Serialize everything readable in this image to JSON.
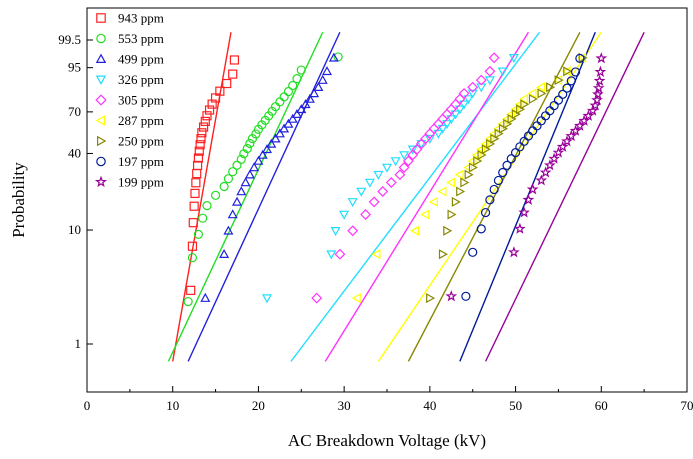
{
  "chart_data": {
    "type": "scatter",
    "title": "",
    "xlabel": "AC Breakdown Voltage (kV)",
    "ylabel": "Probability",
    "xlim": [
      0,
      70
    ],
    "x_ticks": [
      "0",
      "10",
      "20",
      "30",
      "40",
      "50",
      "60",
      "70"
    ],
    "y_scale": "weibull-probability",
    "y_ticks": [
      "1",
      "10",
      "40",
      "70",
      "95",
      "99.5"
    ],
    "grid": false,
    "legend_position": "top-left",
    "series": [
      {
        "name": "943 ppm",
        "color": "#ff2020",
        "marker": "square",
        "fit": {
          "x1": 10.0,
          "p1": 0.7,
          "x2": 16.8,
          "p2": 99.8
        },
        "x": [
          12.1,
          12.3,
          12.4,
          12.5,
          12.6,
          12.7,
          12.8,
          12.9,
          13.0,
          13.1,
          13.2,
          13.3,
          13.4,
          13.6,
          13.8,
          14.0,
          14.3,
          14.6,
          15.0,
          15.5,
          16.3,
          17.0,
          17.2
        ]
      },
      {
        "name": "553 ppm",
        "color": "#22dd22",
        "marker": "circle",
        "fit": {
          "x1": 9.5,
          "p1": 0.7,
          "x2": 27.5,
          "p2": 99.8
        },
        "x": [
          11.8,
          12.3,
          13.0,
          13.5,
          14.0,
          15.0,
          16.0,
          16.5,
          17.0,
          17.5,
          18.0,
          18.3,
          18.7,
          19.0,
          19.3,
          19.7,
          20.0,
          20.4,
          20.8,
          21.2,
          21.6,
          22.0,
          22.5,
          23.0,
          23.5,
          24.0,
          24.5,
          25.0,
          29.3
        ]
      },
      {
        "name": "499 ppm",
        "color": "#2020dd",
        "marker": "triangle-up",
        "fit": {
          "x1": 11.8,
          "p1": 0.7,
          "x2": 29.5,
          "p2": 99.8
        },
        "x": [
          13.8,
          16.0,
          16.5,
          17.0,
          17.5,
          18.0,
          18.5,
          19.0,
          19.5,
          20.0,
          20.5,
          21.0,
          21.5,
          22.0,
          22.5,
          23.0,
          23.5,
          24.0,
          24.5,
          25.0,
          25.5,
          26.0,
          26.5,
          27.0,
          27.5,
          28.0,
          28.8
        ]
      },
      {
        "name": "326 ppm",
        "color": "#22ddff",
        "marker": "triangle-down",
        "fit": {
          "x1": 23.8,
          "p1": 0.7,
          "x2": 52.8,
          "p2": 99.8
        },
        "x": [
          21.0,
          28.5,
          29.0,
          30.0,
          31.0,
          32.0,
          33.0,
          34.0,
          35.0,
          36.0,
          37.0,
          38.0,
          39.0,
          40.0,
          41.0,
          41.5,
          42.0,
          42.5,
          43.0,
          43.5,
          44.0,
          44.5,
          45.0,
          46.0,
          47.0,
          48.5,
          49.8
        ]
      },
      {
        "name": "305 ppm",
        "color": "#ff33ff",
        "marker": "diamond",
        "fit": {
          "x1": 27.8,
          "p1": 0.7,
          "x2": 51.5,
          "p2": 99.8
        },
        "x": [
          26.8,
          29.5,
          31.0,
          32.5,
          33.5,
          34.5,
          35.5,
          36.5,
          37.0,
          37.5,
          38.0,
          38.5,
          39.0,
          39.5,
          40.0,
          40.5,
          41.0,
          41.5,
          42.0,
          42.5,
          43.0,
          43.5,
          44.0,
          45.0,
          46.0,
          47.0,
          47.5
        ]
      },
      {
        "name": "287 ppm",
        "color": "#ffff00",
        "marker": "triangle-left",
        "fit": {
          "x1": 34.0,
          "p1": 0.7,
          "x2": 60.0,
          "p2": 99.8
        },
        "x": [
          31.5,
          33.8,
          38.3,
          39.5,
          40.5,
          41.5,
          42.5,
          43.5,
          44.5,
          45.0,
          45.5,
          46.0,
          46.5,
          47.0,
          47.5,
          48.0,
          48.5,
          49.0,
          49.5,
          50.0,
          50.5,
          51.0,
          52.0,
          53.0,
          55.0,
          56.0,
          57.8
        ]
      },
      {
        "name": "250 ppm",
        "color": "#888800",
        "marker": "triangle-right",
        "fit": {
          "x1": 37.5,
          "p1": 0.7,
          "x2": 57.5,
          "p2": 99.8
        },
        "x": [
          40.0,
          41.5,
          42.0,
          42.5,
          43.0,
          43.5,
          44.0,
          44.5,
          45.0,
          45.5,
          46.0,
          46.5,
          47.0,
          47.5,
          48.0,
          48.5,
          49.0,
          49.5,
          50.0,
          50.5,
          51.0,
          52.0,
          53.0,
          54.0,
          55.0,
          56.0,
          57.8
        ]
      },
      {
        "name": "197 ppm",
        "color": "#001a99",
        "marker": "circle",
        "fit": {
          "x1": 43.5,
          "p1": 0.7,
          "x2": 59.3,
          "p2": 99.8
        },
        "x": [
          44.2,
          45.0,
          46.0,
          46.5,
          47.0,
          47.5,
          48.0,
          48.5,
          49.0,
          49.5,
          50.0,
          50.5,
          51.0,
          51.5,
          52.0,
          52.5,
          53.0,
          53.5,
          54.0,
          54.5,
          55.0,
          55.5,
          56.0,
          56.5,
          57.0,
          57.5
        ]
      },
      {
        "name": "199 ppm",
        "color": "#990099",
        "marker": "star",
        "fit": {
          "x1": 46.5,
          "p1": 0.7,
          "x2": 65.0,
          "p2": 99.8
        },
        "x": [
          42.5,
          49.8,
          50.5,
          51.0,
          51.5,
          52.0,
          53.0,
          53.5,
          54.0,
          54.5,
          55.0,
          55.5,
          56.0,
          56.5,
          57.0,
          57.5,
          58.0,
          58.5,
          59.0,
          59.3,
          59.5,
          59.6,
          59.7,
          59.8,
          59.9,
          60.0
        ]
      }
    ]
  }
}
